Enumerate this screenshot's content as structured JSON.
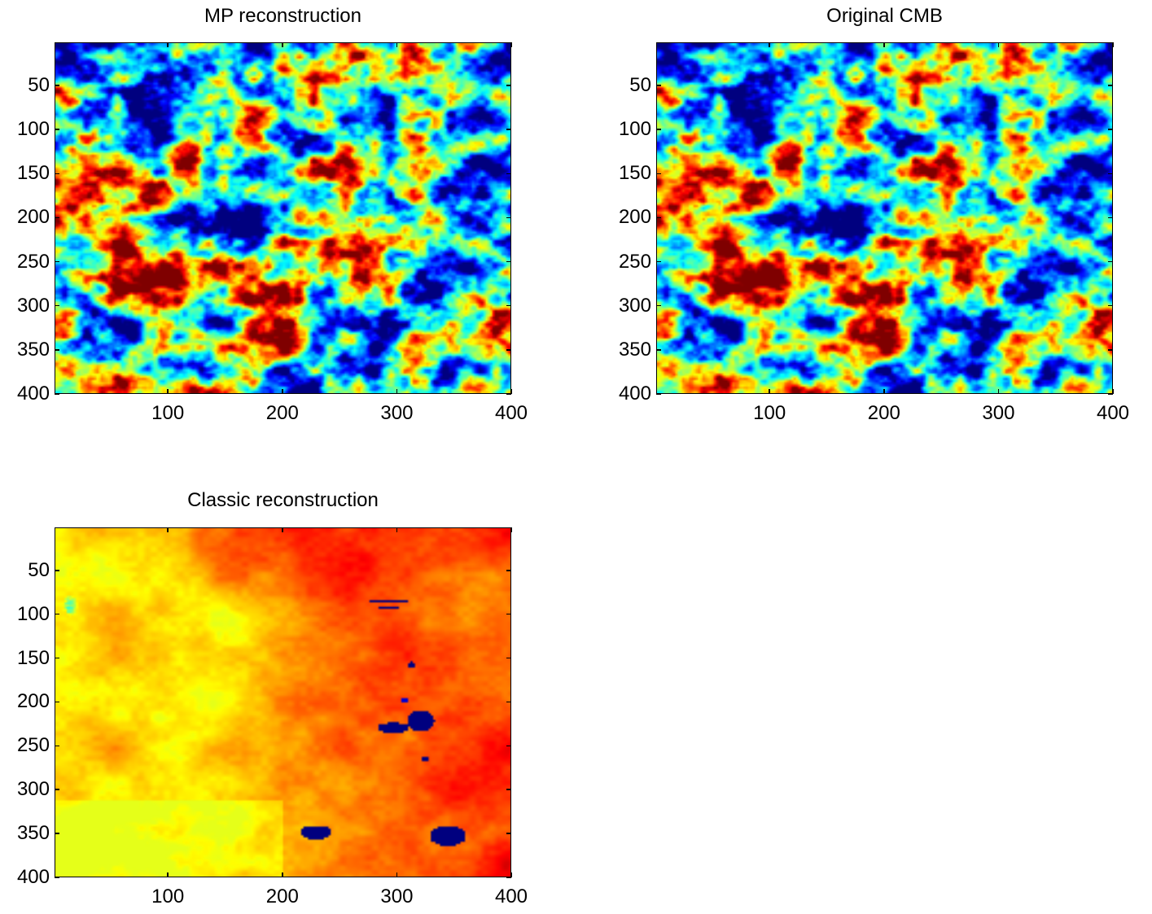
{
  "chart_data": [
    {
      "type": "heatmap",
      "title": "MP reconstruction",
      "xlabel": "",
      "ylabel": "",
      "x_ticks": [
        100,
        200,
        300,
        400
      ],
      "y_ticks": [
        50,
        100,
        150,
        200,
        250,
        300,
        350,
        400
      ],
      "xlim": [
        1,
        400
      ],
      "ylim": [
        1,
        400
      ],
      "colormap": "jet",
      "grid": false,
      "field": "cmb"
    },
    {
      "type": "heatmap",
      "title": "Original CMB",
      "xlabel": "",
      "ylabel": "",
      "x_ticks": [
        100,
        200,
        300,
        400
      ],
      "y_ticks": [
        50,
        100,
        150,
        200,
        250,
        300,
        350,
        400
      ],
      "xlim": [
        1,
        400
      ],
      "ylim": [
        1,
        400
      ],
      "colormap": "jet",
      "grid": false,
      "field": "cmb"
    },
    {
      "type": "heatmap",
      "title": "Classic reconstruction",
      "xlabel": "",
      "ylabel": "",
      "x_ticks": [
        100,
        200,
        300,
        400
      ],
      "y_ticks": [
        50,
        100,
        150,
        200,
        250,
        300,
        350,
        400
      ],
      "xlim": [
        1,
        400
      ],
      "ylim": [
        1,
        400
      ],
      "colormap": "jet",
      "grid": false,
      "field": "classic"
    }
  ]
}
